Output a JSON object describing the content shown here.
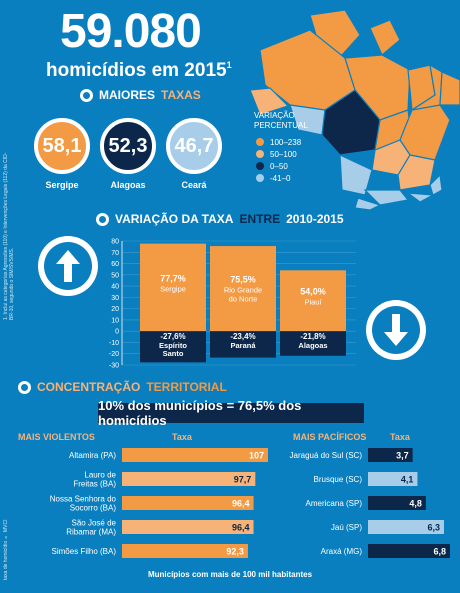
{
  "header": {
    "number": "59.080",
    "subtitle": "homicídios em 2015",
    "footnote_mark": "1"
  },
  "vertical_notes": {
    "left_top": "1. Inclui as categorias Agressões (110) e Intervenções Legais (112) da CID-BR-10, segundo o SIM/SVS/MS.",
    "left_bottom": "taxa de homicídio × MVCI"
  },
  "map_legend": {
    "title_line1": "VARIAÇÃO",
    "title_line2": "PERCENTUAL",
    "items": [
      {
        "label": "100–238",
        "color": "#f39a45"
      },
      {
        "label": "50–100",
        "color": "#f7b277"
      },
      {
        "label": "0–50",
        "color": "#0c2749"
      },
      {
        "label": "-41–0",
        "color": "#a8cde9"
      }
    ]
  },
  "sections": {
    "top_rates_a": "MAIORES",
    "top_rates_b": "TAXAS",
    "variation_a": "VARIAÇÃO DA TAXA",
    "variation_b": "ENTRE",
    "variation_c": "2010-2015",
    "concentration_a": "CONCENTRAÇÃO",
    "concentration_b": "TERRITORIAL"
  },
  "top_rates": [
    {
      "value": "58,1",
      "state": "Sergipe",
      "color": "#f39a45"
    },
    {
      "value": "52,3",
      "state": "Alagoas",
      "color": "#0c2749"
    },
    {
      "value": "46,7",
      "state": "Ceará",
      "color": "#a8cde9"
    }
  ],
  "banner": "10% dos municípios = 76,5% dos homicídios",
  "violent_header": {
    "title": "MAIS VIOLENTOS",
    "rate": "Taxa"
  },
  "peaceful_header": {
    "title": "MAIS PACÍFICOS",
    "rate": "Taxa"
  },
  "footer": "Municípios com mais de 100 mil habitantes",
  "colors": {
    "background": "#0a7fbf",
    "orange": "#f39a45",
    "light_orange": "#f7b277",
    "navy": "#0c2749",
    "light_blue": "#a8cde9"
  },
  "chart_data": [
    {
      "type": "bar",
      "ylim": [
        -30,
        80
      ],
      "yticks": [
        80,
        70,
        60,
        50,
        40,
        30,
        20,
        10,
        0,
        -10,
        -20,
        -30
      ],
      "positive": [
        {
          "value": 77.7,
          "label": "77,7%",
          "name": "Sergipe"
        },
        {
          "value": 75.5,
          "label": "75,5%",
          "name": "Rio Grande do Norte"
        },
        {
          "value": 54.0,
          "label": "54,0%",
          "name": "Piauí"
        }
      ],
      "negative": [
        {
          "value": -27.6,
          "label": "-27,6%",
          "name": "Espírito Santo"
        },
        {
          "value": -23.4,
          "label": "-23,4%",
          "name": "Paraná"
        },
        {
          "value": -21.8,
          "label": "-21,8%",
          "name": "Alagoas"
        }
      ]
    },
    {
      "type": "bar",
      "orientation": "horizontal",
      "categories": [
        "Altamira (PA)",
        "Lauro de Freitas (BA)",
        "Nossa Senhora do Socorro (BA)",
        "São José de Ribamar (MA)",
        "Simões Filho (BA)"
      ],
      "values": [
        107,
        97.7,
        96.4,
        96.4,
        92.3
      ],
      "value_labels": [
        "107",
        "97,7",
        "96,4",
        "96,4",
        "92,3"
      ]
    },
    {
      "type": "bar",
      "orientation": "horizontal",
      "categories": [
        "Jaraguá do Sul (SC)",
        "Brusque (SC)",
        "Americana (SP)",
        "Jaú (SP)",
        "Araxá (MG)"
      ],
      "values": [
        3.7,
        4.1,
        4.8,
        6.3,
        6.8
      ],
      "value_labels": [
        "3,7",
        "4,1",
        "4,8",
        "6,3",
        "6,8"
      ]
    }
  ]
}
